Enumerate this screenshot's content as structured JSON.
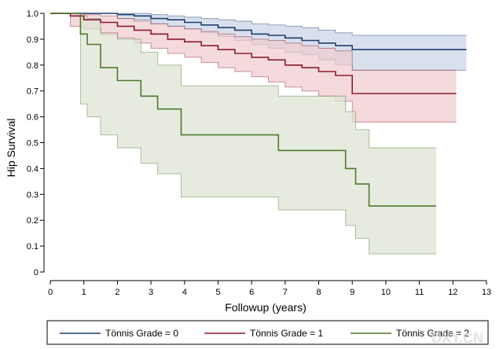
{
  "chart_data": {
    "type": "line",
    "xlabel": "Followup (years)",
    "ylabel": "Hip Survival",
    "xlim": [
      0,
      13
    ],
    "ylim": [
      0,
      1.0
    ],
    "xticks": [
      "0",
      "1",
      "2",
      "3",
      "4",
      "5",
      "6",
      "7",
      "8",
      "9",
      "10",
      "11",
      "12",
      "13"
    ],
    "yticks": [
      "0",
      "0.1",
      "0.2",
      "0.3",
      "0.4",
      "0.5",
      "0.6",
      "0.7",
      "0.8",
      "0.9",
      "1.0"
    ],
    "grid": false,
    "legend_position": "bottom",
    "series": [
      {
        "name": "Tönnis Grade = 0",
        "color": "#1f3f6e",
        "fill": "#c9d3e6",
        "x": [
          0,
          2,
          2.5,
          3,
          3.5,
          4,
          4.5,
          5,
          5.5,
          6,
          6.5,
          7,
          7.5,
          8,
          8.5,
          9,
          12.4
        ],
        "y": [
          1.0,
          0.995,
          0.99,
          0.98,
          0.975,
          0.965,
          0.955,
          0.945,
          0.935,
          0.92,
          0.915,
          0.905,
          0.895,
          0.885,
          0.875,
          0.86,
          0.86
        ],
        "upper": [
          1.0,
          1.0,
          1.0,
          0.995,
          0.99,
          0.985,
          0.98,
          0.975,
          0.97,
          0.96,
          0.955,
          0.95,
          0.945,
          0.935,
          0.925,
          0.915,
          0.915
        ],
        "lower": [
          1.0,
          0.98,
          0.975,
          0.96,
          0.95,
          0.94,
          0.925,
          0.91,
          0.895,
          0.88,
          0.865,
          0.85,
          0.84,
          0.82,
          0.8,
          0.78,
          0.78
        ]
      },
      {
        "name": "Tönnis Grade = 1",
        "color": "#8b1c2c",
        "fill": "#efcbcf",
        "x": [
          0,
          0.6,
          1.0,
          1.5,
          2.0,
          2.5,
          3.0,
          3.5,
          4.0,
          4.5,
          5.0,
          5.5,
          6.0,
          6.5,
          7.0,
          7.5,
          8.0,
          8.5,
          9.0,
          12.1
        ],
        "y": [
          1.0,
          0.99,
          0.975,
          0.965,
          0.95,
          0.935,
          0.92,
          0.9,
          0.89,
          0.875,
          0.86,
          0.845,
          0.83,
          0.82,
          0.8,
          0.79,
          0.775,
          0.76,
          0.69,
          0.69
        ],
        "upper": [
          1.0,
          1.0,
          0.995,
          0.99,
          0.98,
          0.97,
          0.96,
          0.95,
          0.94,
          0.93,
          0.92,
          0.91,
          0.9,
          0.895,
          0.885,
          0.875,
          0.865,
          0.855,
          0.78,
          0.78
        ],
        "lower": [
          1.0,
          0.95,
          0.94,
          0.925,
          0.905,
          0.885,
          0.865,
          0.845,
          0.83,
          0.81,
          0.79,
          0.775,
          0.755,
          0.735,
          0.715,
          0.7,
          0.68,
          0.66,
          0.58,
          0.58
        ]
      },
      {
        "name": "Tönnis Grade = 2",
        "color": "#4e7a2c",
        "fill": "#dde3d2",
        "x": [
          0,
          0.9,
          1.1,
          1.5,
          2.0,
          2.7,
          3.2,
          3.9,
          6.8,
          8.8,
          9.1,
          9.5,
          11.5
        ],
        "y": [
          1.0,
          0.92,
          0.88,
          0.79,
          0.74,
          0.68,
          0.63,
          0.53,
          0.47,
          0.4,
          0.34,
          0.255,
          0.255
        ],
        "upper": [
          1.0,
          0.99,
          0.98,
          0.92,
          0.9,
          0.85,
          0.8,
          0.72,
          0.68,
          0.62,
          0.55,
          0.48,
          0.48
        ],
        "lower": [
          1.0,
          0.65,
          0.6,
          0.53,
          0.48,
          0.42,
          0.38,
          0.29,
          0.24,
          0.18,
          0.13,
          0.07,
          0.07
        ]
      }
    ]
  },
  "watermark": "DXY.CN"
}
